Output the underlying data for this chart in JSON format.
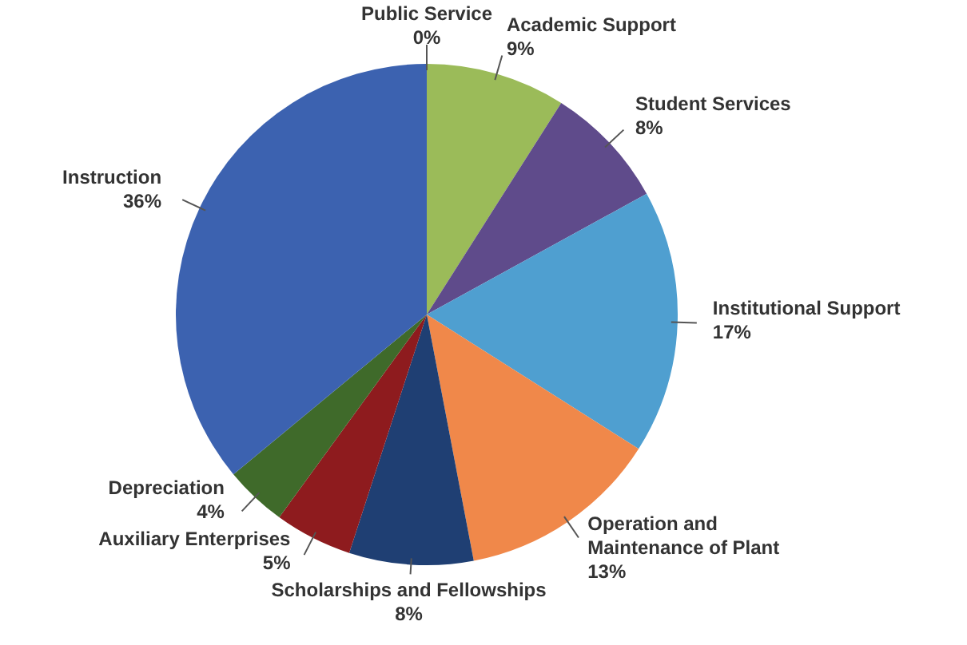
{
  "chart_data": {
    "type": "pie",
    "categories": [
      "Public Service",
      "Academic Support",
      "Student Services",
      "Institutional Support",
      "Operation and Maintenance of Plant",
      "Scholarships and Fellowships",
      "Auxiliary Enterprises",
      "Depreciation",
      "Instruction"
    ],
    "values": [
      0,
      9,
      8,
      17,
      13,
      8,
      5,
      4,
      36
    ],
    "value_labels": [
      "0%",
      "9%",
      "8%",
      "17%",
      "13%",
      "8%",
      "5%",
      "4%",
      "36%"
    ],
    "colors": [
      "#c0504d",
      "#9bbb59",
      "#5f4b8b",
      "#4f9fd0",
      "#f0884a",
      "#1f3f73",
      "#8e1b1e",
      "#3f6a2a",
      "#3c62b0"
    ]
  }
}
